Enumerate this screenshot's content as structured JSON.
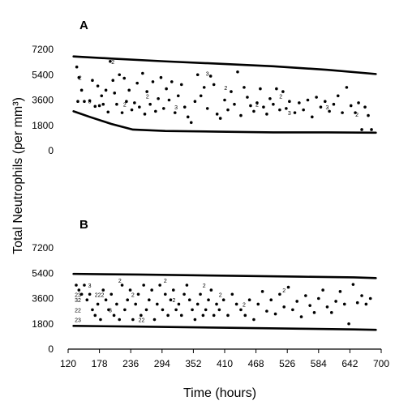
{
  "chart_data": [
    {
      "type": "scatter",
      "panel_label": "A",
      "y_ticks": [
        0,
        1800,
        3600,
        5400,
        7200
      ],
      "y_tick_labels": [
        "0",
        "1800",
        "3600",
        "5400",
        "7200"
      ],
      "upper_bound": {
        "x": [
          130,
          200,
          300,
          400,
          500,
          600,
          690
        ],
        "y": [
          6700,
          6550,
          6350,
          6180,
          6000,
          5750,
          5450
        ]
      },
      "lower_bound": {
        "x": [
          130,
          160,
          200,
          240,
          300,
          400,
          500,
          600,
          690
        ],
        "y": [
          2800,
          2400,
          1900,
          1500,
          1400,
          1350,
          1300,
          1300,
          1280
        ]
      },
      "points": [
        {
          "x": 136,
          "y": 5950
        },
        {
          "x": 140,
          "y": 5200
        },
        {
          "x": 138,
          "y": 3500
        },
        {
          "x": 145,
          "y": 4300
        },
        {
          "x": 150,
          "y": 3500
        },
        {
          "x": 160,
          "y": 3550
        },
        {
          "x": 165,
          "y": 5000
        },
        {
          "x": 170,
          "y": 3150
        },
        {
          "x": 175,
          "y": 4600
        },
        {
          "x": 178,
          "y": 3200
        },
        {
          "x": 182,
          "y": 3900
        },
        {
          "x": 185,
          "y": 3300
        },
        {
          "x": 190,
          "y": 4300
        },
        {
          "x": 194,
          "y": 2750
        },
        {
          "x": 198,
          "y": 6350
        },
        {
          "x": 203,
          "y": 5000
        },
        {
          "x": 206,
          "y": 4100
        },
        {
          "x": 210,
          "y": 3300
        },
        {
          "x": 215,
          "y": 5400
        },
        {
          "x": 220,
          "y": 2700
        },
        {
          "x": 224,
          "y": 5150
        },
        {
          "x": 228,
          "y": 3500
        },
        {
          "x": 233,
          "y": 4300
        },
        {
          "x": 238,
          "y": 2900
        },
        {
          "x": 243,
          "y": 3400
        },
        {
          "x": 248,
          "y": 4800
        },
        {
          "x": 252,
          "y": 3100
        },
        {
          "x": 258,
          "y": 5500
        },
        {
          "x": 262,
          "y": 2600
        },
        {
          "x": 266,
          "y": 4200
        },
        {
          "x": 272,
          "y": 3300
        },
        {
          "x": 277,
          "y": 4900
        },
        {
          "x": 282,
          "y": 2800
        },
        {
          "x": 287,
          "y": 3700
        },
        {
          "x": 292,
          "y": 5200
        },
        {
          "x": 297,
          "y": 3000
        },
        {
          "x": 302,
          "y": 4400
        },
        {
          "x": 307,
          "y": 3600
        },
        {
          "x": 312,
          "y": 4900
        },
        {
          "x": 318,
          "y": 2700
        },
        {
          "x": 324,
          "y": 3900
        },
        {
          "x": 330,
          "y": 4700
        },
        {
          "x": 336,
          "y": 3100
        },
        {
          "x": 342,
          "y": 2400
        },
        {
          "x": 348,
          "y": 2000
        },
        {
          "x": 355,
          "y": 3500
        },
        {
          "x": 360,
          "y": 5400
        },
        {
          "x": 366,
          "y": 3900
        },
        {
          "x": 372,
          "y": 4500
        },
        {
          "x": 378,
          "y": 3000
        },
        {
          "x": 384,
          "y": 5300
        },
        {
          "x": 390,
          "y": 4700
        },
        {
          "x": 396,
          "y": 2600
        },
        {
          "x": 402,
          "y": 2300
        },
        {
          "x": 410,
          "y": 3600
        },
        {
          "x": 416,
          "y": 2900
        },
        {
          "x": 422,
          "y": 4200
        },
        {
          "x": 428,
          "y": 3300
        },
        {
          "x": 434,
          "y": 5600
        },
        {
          "x": 440,
          "y": 2500
        },
        {
          "x": 446,
          "y": 4500
        },
        {
          "x": 452,
          "y": 3800
        },
        {
          "x": 458,
          "y": 3200
        },
        {
          "x": 464,
          "y": 2800
        },
        {
          "x": 470,
          "y": 3400
        },
        {
          "x": 476,
          "y": 4400
        },
        {
          "x": 482,
          "y": 3100
        },
        {
          "x": 488,
          "y": 2600
        },
        {
          "x": 494,
          "y": 3700
        },
        {
          "x": 500,
          "y": 3300
        },
        {
          "x": 506,
          "y": 4400
        },
        {
          "x": 512,
          "y": 2900
        },
        {
          "x": 518,
          "y": 4200
        },
        {
          "x": 524,
          "y": 3000
        },
        {
          "x": 530,
          "y": 3500
        },
        {
          "x": 540,
          "y": 2700
        },
        {
          "x": 548,
          "y": 3400
        },
        {
          "x": 556,
          "y": 2900
        },
        {
          "x": 564,
          "y": 3600
        },
        {
          "x": 572,
          "y": 2400
        },
        {
          "x": 580,
          "y": 3800
        },
        {
          "x": 588,
          "y": 3100
        },
        {
          "x": 596,
          "y": 3500
        },
        {
          "x": 604,
          "y": 2800
        },
        {
          "x": 612,
          "y": 3300
        },
        {
          "x": 620,
          "y": 3900
        },
        {
          "x": 628,
          "y": 2700
        },
        {
          "x": 636,
          "y": 4500
        },
        {
          "x": 644,
          "y": 3200
        },
        {
          "x": 652,
          "y": 2700
        },
        {
          "x": 658,
          "y": 3400
        },
        {
          "x": 664,
          "y": 1500
        },
        {
          "x": 670,
          "y": 3100
        },
        {
          "x": 676,
          "y": 2500
        },
        {
          "x": 682,
          "y": 1500
        }
      ],
      "count_labels": [
        {
          "x": 142,
          "y": 5200,
          "text": "2"
        },
        {
          "x": 160,
          "y": 3550,
          "text": "3"
        },
        {
          "x": 203,
          "y": 6350,
          "text": "2"
        },
        {
          "x": 225,
          "y": 3300,
          "text": "2"
        },
        {
          "x": 267,
          "y": 3900,
          "text": "2"
        },
        {
          "x": 320,
          "y": 3100,
          "text": "3"
        },
        {
          "x": 378,
          "y": 5500,
          "text": "3"
        },
        {
          "x": 412,
          "y": 4500,
          "text": "2"
        },
        {
          "x": 470,
          "y": 3300,
          "text": "2"
        },
        {
          "x": 514,
          "y": 3900,
          "text": "2"
        },
        {
          "x": 530,
          "y": 2700,
          "text": "3"
        },
        {
          "x": 600,
          "y": 3100,
          "text": "3"
        },
        {
          "x": 655,
          "y": 2600,
          "text": "2"
        }
      ]
    },
    {
      "type": "scatter",
      "panel_label": "B",
      "x_ticks": [
        120,
        178,
        236,
        294,
        352,
        410,
        468,
        526,
        584,
        642,
        700
      ],
      "x_tick_labels": [
        "120",
        "178",
        "236",
        "294",
        "352",
        "410",
        "468",
        "526",
        "584",
        "642",
        "700"
      ],
      "y_ticks": [
        0,
        1800,
        3600,
        5400,
        7200
      ],
      "y_tick_labels": [
        "0",
        "1800",
        "3600",
        "5400",
        "7200"
      ],
      "upper_bound": {
        "x": [
          130,
          250,
          350,
          450,
          550,
          650,
          690
        ],
        "y": [
          5350,
          5300,
          5250,
          5200,
          5150,
          5100,
          5050
        ]
      },
      "lower_bound": {
        "x": [
          130,
          250,
          350,
          450,
          550,
          650,
          690
        ],
        "y": [
          1650,
          1600,
          1550,
          1500,
          1450,
          1400,
          1370
        ]
      },
      "points": [
        {
          "x": 135,
          "y": 4550
        },
        {
          "x": 140,
          "y": 4200
        },
        {
          "x": 145,
          "y": 3900
        },
        {
          "x": 150,
          "y": 4550
        },
        {
          "x": 155,
          "y": 3500
        },
        {
          "x": 160,
          "y": 3900
        },
        {
          "x": 165,
          "y": 2800
        },
        {
          "x": 170,
          "y": 2400
        },
        {
          "x": 175,
          "y": 3200
        },
        {
          "x": 180,
          "y": 2100
        },
        {
          "x": 185,
          "y": 4200
        },
        {
          "x": 190,
          "y": 3500
        },
        {
          "x": 195,
          "y": 2800
        },
        {
          "x": 200,
          "y": 3900
        },
        {
          "x": 205,
          "y": 2400
        },
        {
          "x": 210,
          "y": 3200
        },
        {
          "x": 215,
          "y": 2100
        },
        {
          "x": 220,
          "y": 4550
        },
        {
          "x": 225,
          "y": 2800
        },
        {
          "x": 230,
          "y": 3500
        },
        {
          "x": 235,
          "y": 4200
        },
        {
          "x": 240,
          "y": 2100
        },
        {
          "x": 245,
          "y": 3200
        },
        {
          "x": 250,
          "y": 3900
        },
        {
          "x": 255,
          "y": 2400
        },
        {
          "x": 260,
          "y": 4550
        },
        {
          "x": 265,
          "y": 2800
        },
        {
          "x": 270,
          "y": 3500
        },
        {
          "x": 275,
          "y": 4200
        },
        {
          "x": 280,
          "y": 2100
        },
        {
          "x": 285,
          "y": 3200
        },
        {
          "x": 290,
          "y": 4550
        },
        {
          "x": 295,
          "y": 2800
        },
        {
          "x": 300,
          "y": 3900
        },
        {
          "x": 305,
          "y": 2400
        },
        {
          "x": 310,
          "y": 3500
        },
        {
          "x": 315,
          "y": 4200
        },
        {
          "x": 320,
          "y": 2800
        },
        {
          "x": 325,
          "y": 3200
        },
        {
          "x": 330,
          "y": 2400
        },
        {
          "x": 335,
          "y": 3900
        },
        {
          "x": 340,
          "y": 4550
        },
        {
          "x": 345,
          "y": 3500
        },
        {
          "x": 350,
          "y": 2800
        },
        {
          "x": 355,
          "y": 2100
        },
        {
          "x": 360,
          "y": 3200
        },
        {
          "x": 365,
          "y": 3900
        },
        {
          "x": 370,
          "y": 2400
        },
        {
          "x": 375,
          "y": 2800
        },
        {
          "x": 380,
          "y": 3500
        },
        {
          "x": 385,
          "y": 4200
        },
        {
          "x": 390,
          "y": 2400
        },
        {
          "x": 395,
          "y": 3200
        },
        {
          "x": 400,
          "y": 2800
        },
        {
          "x": 408,
          "y": 3500
        },
        {
          "x": 416,
          "y": 2400
        },
        {
          "x": 424,
          "y": 3900
        },
        {
          "x": 432,
          "y": 3200
        },
        {
          "x": 440,
          "y": 2800
        },
        {
          "x": 448,
          "y": 2400
        },
        {
          "x": 456,
          "y": 3500
        },
        {
          "x": 464,
          "y": 2100
        },
        {
          "x": 472,
          "y": 3200
        },
        {
          "x": 480,
          "y": 4100
        },
        {
          "x": 488,
          "y": 2700
        },
        {
          "x": 496,
          "y": 3500
        },
        {
          "x": 504,
          "y": 2500
        },
        {
          "x": 512,
          "y": 3900
        },
        {
          "x": 520,
          "y": 3000
        },
        {
          "x": 528,
          "y": 4400
        },
        {
          "x": 536,
          "y": 2800
        },
        {
          "x": 544,
          "y": 3400
        },
        {
          "x": 552,
          "y": 2300
        },
        {
          "x": 560,
          "y": 3800
        },
        {
          "x": 568,
          "y": 3100
        },
        {
          "x": 576,
          "y": 2600
        },
        {
          "x": 584,
          "y": 3600
        },
        {
          "x": 592,
          "y": 4200
        },
        {
          "x": 600,
          "y": 3000
        },
        {
          "x": 608,
          "y": 2600
        },
        {
          "x": 616,
          "y": 3400
        },
        {
          "x": 624,
          "y": 4100
        },
        {
          "x": 632,
          "y": 3200
        },
        {
          "x": 640,
          "y": 1800
        },
        {
          "x": 648,
          "y": 4600
        },
        {
          "x": 656,
          "y": 3300
        },
        {
          "x": 664,
          "y": 3800
        },
        {
          "x": 672,
          "y": 3200
        },
        {
          "x": 680,
          "y": 3600
        }
      ],
      "count_labels": [
        {
          "x": 138,
          "y": 3900,
          "text": "23"
        },
        {
          "x": 138,
          "y": 3500,
          "text": "32"
        },
        {
          "x": 138,
          "y": 2800,
          "text": "22"
        },
        {
          "x": 138,
          "y": 2100,
          "text": "23"
        },
        {
          "x": 160,
          "y": 4550,
          "text": "3"
        },
        {
          "x": 178,
          "y": 3900,
          "text": "222"
        },
        {
          "x": 198,
          "y": 2800,
          "text": "3"
        },
        {
          "x": 216,
          "y": 4900,
          "text": "2"
        },
        {
          "x": 240,
          "y": 3900,
          "text": "2"
        },
        {
          "x": 256,
          "y": 2100,
          "text": "22"
        },
        {
          "x": 300,
          "y": 4900,
          "text": "2"
        },
        {
          "x": 316,
          "y": 3500,
          "text": "2"
        },
        {
          "x": 372,
          "y": 4550,
          "text": "2"
        },
        {
          "x": 402,
          "y": 3900,
          "text": "2"
        },
        {
          "x": 446,
          "y": 3200,
          "text": "2"
        },
        {
          "x": 520,
          "y": 4200,
          "text": "2"
        }
      ]
    }
  ],
  "shared": {
    "y_axis_label": "Total Neutrophils (per mm³)",
    "x_axis_label": "Time (hours)"
  }
}
